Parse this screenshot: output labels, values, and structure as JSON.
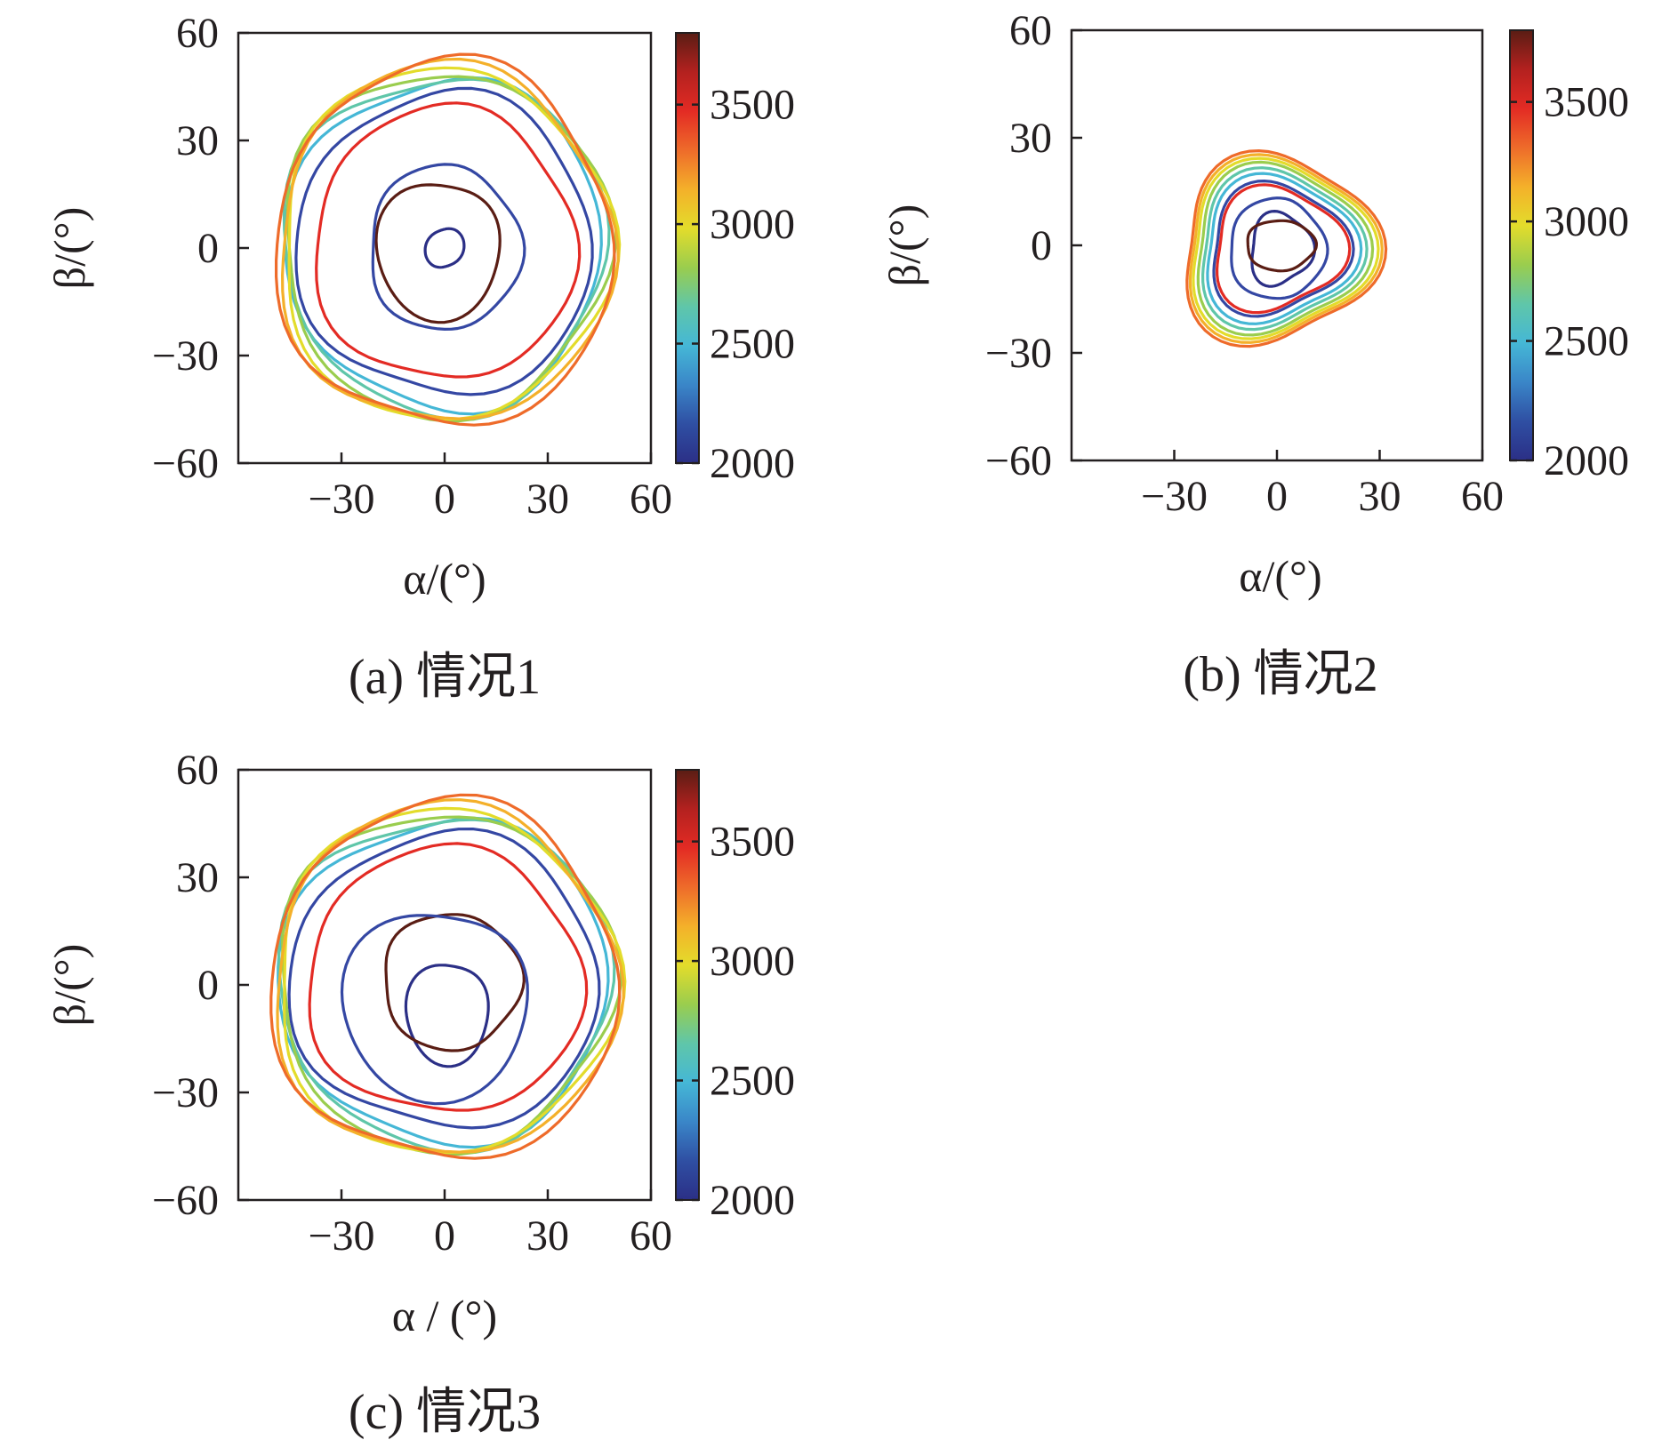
{
  "figure": {
    "colorbar_colors": [
      "#2b2f86",
      "#2f4fa3",
      "#3a86c8",
      "#45b7d6",
      "#5fc6a9",
      "#9acd4e",
      "#e3dc2b",
      "#f4b02a",
      "#ee6b2a",
      "#e32b24",
      "#b3211f",
      "#5a1d14"
    ]
  },
  "chart_data": [
    {
      "type": "contour",
      "panel": "a",
      "caption": "(a)  情况1",
      "xlabel": "α/(°)",
      "ylabel": "β/(°)",
      "xlim": [
        -60,
        60
      ],
      "ylim": [
        -60,
        60
      ],
      "xticks": [
        "−30",
        "0",
        "30",
        "60"
      ],
      "yticks": [
        "−60",
        "−30",
        "0",
        "30",
        "60"
      ],
      "colorbar": {
        "min": 2000,
        "max": 3800,
        "ticks": [
          "2000",
          "2500",
          "3000",
          "3500"
        ]
      },
      "levels": [
        {
          "value": 2000,
          "color": "#2b2f86",
          "cx": 0,
          "cy": 0,
          "rx": 5,
          "ry": 6,
          "shape": "blob"
        },
        {
          "value": 3700,
          "color": "#5a1d14",
          "cx": 0,
          "cy": 2,
          "rx": 18,
          "ry": 19,
          "shape": "drop"
        },
        {
          "value": 2300,
          "color": "#3447a3",
          "cx": 0,
          "cy": 0,
          "rx": 22,
          "ry": 23,
          "shape": "round"
        },
        {
          "value": 3500,
          "color": "#e32b24",
          "cx": 0,
          "cy": 1,
          "rx": 38,
          "ry": 38,
          "shape": "round"
        },
        {
          "value": 2300,
          "color": "#3447a3",
          "cx": 0,
          "cy": 1,
          "rx": 43,
          "ry": 42,
          "shape": "round"
        },
        {
          "value": 2500,
          "color": "#45b7d6",
          "cx": 0,
          "cy": 1,
          "rx": 46,
          "ry": 46,
          "shape": "round"
        },
        {
          "value": 2700,
          "color": "#5fc6a9",
          "cx": 0,
          "cy": 1,
          "rx": 47,
          "ry": 47,
          "shape": "round"
        },
        {
          "value": 2900,
          "color": "#9acd4e",
          "cx": 0,
          "cy": 1,
          "rx": 47.5,
          "ry": 48,
          "shape": "round"
        },
        {
          "value": 3100,
          "color": "#e3dc2b",
          "cx": 0,
          "cy": 1,
          "rx": 48,
          "ry": 49,
          "shape": "round"
        },
        {
          "value": 3300,
          "color": "#f4b02a",
          "cx": 0,
          "cy": 1,
          "rx": 48.5,
          "ry": 50,
          "shape": "round"
        },
        {
          "value": 3400,
          "color": "#ee6b2a",
          "cx": 0,
          "cy": 1,
          "rx": 49,
          "ry": 51,
          "shape": "round"
        }
      ]
    },
    {
      "type": "contour",
      "panel": "b",
      "caption": "(b)  情况2",
      "xlabel": "α/(°)",
      "ylabel": "β/(°)",
      "xlim": [
        -60,
        60
      ],
      "ylim": [
        -60,
        60
      ],
      "xticks": [
        "−30",
        "0",
        "30",
        "60"
      ],
      "yticks": [
        "−60",
        "−30",
        "0",
        "30",
        "60"
      ],
      "colorbar": {
        "min": 2000,
        "max": 3800,
        "ticks": [
          "2000",
          "2500",
          "3000",
          "3500"
        ]
      },
      "levels": [
        {
          "value": 2000,
          "color": "#2b2f86",
          "cx": 1,
          "cy": -1,
          "rx": 9,
          "ry": 10,
          "shape": "tri"
        },
        {
          "value": 3700,
          "color": "#5a1d14",
          "cx": 1,
          "cy": 0,
          "rx": 10,
          "ry": 7,
          "shape": "round"
        },
        {
          "value": 2300,
          "color": "#3447a3",
          "cx": 0,
          "cy": -1,
          "rx": 14,
          "ry": 14,
          "shape": "round"
        },
        {
          "value": 3500,
          "color": "#e32b24",
          "cx": 0,
          "cy": -1,
          "rx": 19,
          "ry": 17,
          "shape": "tri"
        },
        {
          "value": 2300,
          "color": "#3447a3",
          "cx": 0,
          "cy": -1,
          "rx": 20,
          "ry": 18,
          "shape": "tri"
        },
        {
          "value": 2500,
          "color": "#45b7d6",
          "cx": 0,
          "cy": -1,
          "rx": 22,
          "ry": 20,
          "shape": "tri"
        },
        {
          "value": 2700,
          "color": "#5fc6a9",
          "cx": 0,
          "cy": -1,
          "rx": 23.5,
          "ry": 21.5,
          "shape": "tri"
        },
        {
          "value": 2900,
          "color": "#9acd4e",
          "cx": 0,
          "cy": -1,
          "rx": 25,
          "ry": 23,
          "shape": "tri"
        },
        {
          "value": 3100,
          "color": "#e3dc2b",
          "cx": 0,
          "cy": -1,
          "rx": 26.5,
          "ry": 24,
          "shape": "tri"
        },
        {
          "value": 3300,
          "color": "#f4b02a",
          "cx": 0,
          "cy": -1,
          "rx": 27.5,
          "ry": 25,
          "shape": "tri"
        },
        {
          "value": 3400,
          "color": "#ee6b2a",
          "cx": 0,
          "cy": -1,
          "rx": 28.5,
          "ry": 26,
          "shape": "tri"
        }
      ]
    },
    {
      "type": "contour",
      "panel": "c",
      "caption": "(c)  情况3",
      "xlabel": "α / (°)",
      "ylabel": "β/(°)",
      "xlim": [
        -60,
        60
      ],
      "ylim": [
        -60,
        60
      ],
      "xticks": [
        "−30",
        "0",
        "30",
        "60"
      ],
      "yticks": [
        "−60",
        "−30",
        "0",
        "30",
        "60"
      ],
      "colorbar": {
        "min": 2000,
        "max": 3800,
        "ticks": [
          "2000",
          "2500",
          "3000",
          "3500"
        ]
      },
      "levels": [
        {
          "value": 2000,
          "color": "#2b2f86",
          "cx": 2,
          "cy": -6,
          "rx": 12,
          "ry": 14,
          "shape": "drop"
        },
        {
          "value": 3700,
          "color": "#5a1d14",
          "cx": 2,
          "cy": 1,
          "rx": 20,
          "ry": 19,
          "shape": "round"
        },
        {
          "value": 2300,
          "color": "#3447a3",
          "cx": 0,
          "cy": -2,
          "rx": 27,
          "ry": 26,
          "shape": "drop"
        },
        {
          "value": 3500,
          "color": "#e32b24",
          "cx": 0,
          "cy": 1,
          "rx": 40,
          "ry": 37,
          "shape": "round"
        },
        {
          "value": 2300,
          "color": "#3447a3",
          "cx": 0,
          "cy": 1,
          "rx": 45,
          "ry": 41,
          "shape": "round"
        },
        {
          "value": 2500,
          "color": "#45b7d6",
          "cx": 0,
          "cy": 1,
          "rx": 48,
          "ry": 45,
          "shape": "round"
        },
        {
          "value": 2700,
          "color": "#5fc6a9",
          "cx": 0,
          "cy": 1,
          "rx": 48.5,
          "ry": 46,
          "shape": "round"
        },
        {
          "value": 2900,
          "color": "#9acd4e",
          "cx": 0,
          "cy": 1,
          "rx": 49,
          "ry": 47,
          "shape": "round"
        },
        {
          "value": 3100,
          "color": "#e3dc2b",
          "cx": 0,
          "cy": 1,
          "rx": 49.5,
          "ry": 48,
          "shape": "round"
        },
        {
          "value": 3300,
          "color": "#f4b02a",
          "cx": 0,
          "cy": 1,
          "rx": 50,
          "ry": 49,
          "shape": "round"
        },
        {
          "value": 3400,
          "color": "#ee6b2a",
          "cx": 0,
          "cy": 1,
          "rx": 50.5,
          "ry": 50,
          "shape": "round"
        }
      ]
    }
  ]
}
